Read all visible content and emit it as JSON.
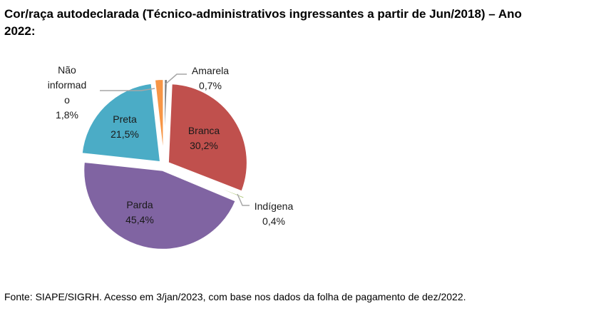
{
  "chart_data": {
    "type": "pie",
    "title_lines": [
      "Cor/raça autodeclarada (Técnico-administrativos ingressantes a partir de Jun/2018) – Ano",
      "2022:"
    ],
    "slices": [
      {
        "name": "Amarela",
        "label_lines": [
          "Amarela"
        ],
        "value": 0.7,
        "value_label": "0,7%",
        "color": "#7F7F7F"
      },
      {
        "name": "Branca",
        "label_lines": [
          "Branca"
        ],
        "value": 30.2,
        "value_label": "30,2%",
        "color": "#C0504D"
      },
      {
        "name": "Indígena",
        "label_lines": [
          "Indígena"
        ],
        "value": 0.4,
        "value_label": "0,4%",
        "color": "#9BBB59"
      },
      {
        "name": "Parda",
        "label_lines": [
          "Parda"
        ],
        "value": 45.4,
        "value_label": "45,4%",
        "color": "#8064A2"
      },
      {
        "name": "Preta",
        "label_lines": [
          "Preta"
        ],
        "value": 21.5,
        "value_label": "21,5%",
        "color": "#4BACC6"
      },
      {
        "name": "Não informado",
        "label_lines": [
          "Não",
          "informad",
          "o"
        ],
        "value": 1.8,
        "value_label": "1,8%",
        "color": "#F79646"
      }
    ],
    "legend": "none"
  },
  "source": "Fonte: SIAPE/SIGRH. Acesso em 3/jan/2023, com base nos dados da folha de pagamento de dez/2022."
}
